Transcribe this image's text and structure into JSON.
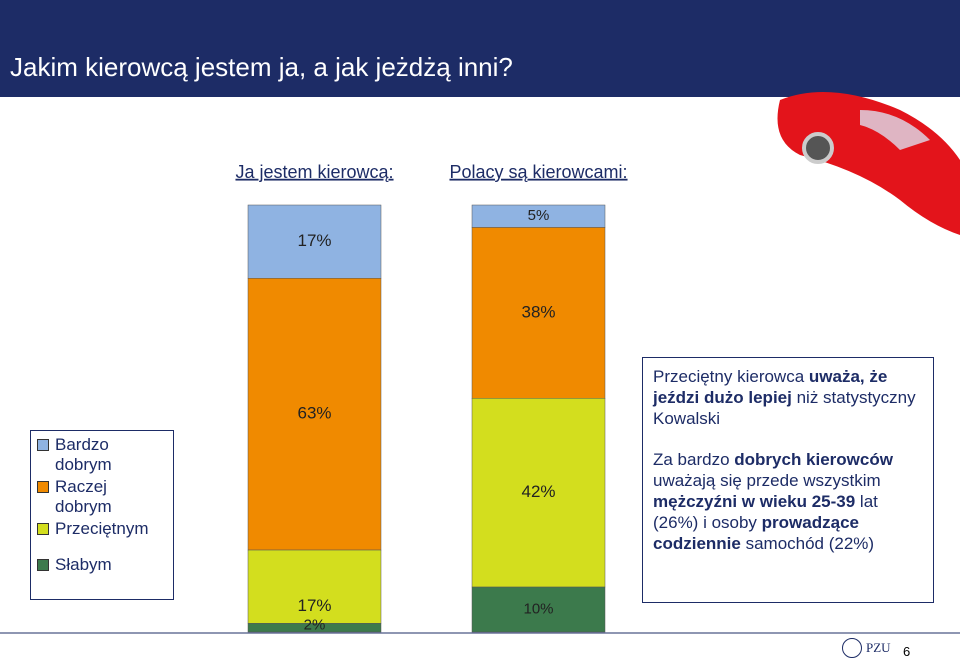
{
  "slide_title": "Jakim kierowcą jestem ja, a jak jeżdżą inni?",
  "chart_data": {
    "type": "stacked-bar-100",
    "categories": [
      "Ja jestem kierowcą:",
      "Polacy są kierowcami:"
    ],
    "series": [
      {
        "name": "Bardzo dobrym",
        "color": "#8fb3e2",
        "values": [
          17,
          5
        ],
        "value_labels": [
          "17%",
          "5%"
        ]
      },
      {
        "name": "Raczej dobrym",
        "color": "#f08a00",
        "values": [
          63,
          38
        ],
        "value_labels": [
          "63%",
          "38%"
        ]
      },
      {
        "name": "Przeciętnym",
        "color": "#d3de1e",
        "values": [
          17,
          42
        ],
        "value_labels": [
          "17%",
          "42%"
        ]
      },
      {
        "name": "Słabym",
        "color": "#3c7a4c",
        "values": [
          2,
          10
        ],
        "value_labels": [
          "2%",
          "10%"
        ]
      }
    ]
  },
  "note": {
    "paragraphs": [
      [
        {
          "text": "Przeciętny kierowca ",
          "bold": false
        },
        {
          "text": "uważa, że jeździ dużo lepiej",
          "bold": true
        },
        {
          "text": " niż statystyczny Kowalski",
          "bold": false
        }
      ],
      [
        {
          "text": "Za bardzo ",
          "bold": false
        },
        {
          "text": "dobrych kierowców",
          "bold": true
        },
        {
          "text": " uważają się przede wszystkim ",
          "bold": false
        },
        {
          "text": "mężczyźni w wieku 25-39",
          "bold": true
        },
        {
          "text": " lat (26%) i osoby ",
          "bold": false
        },
        {
          "text": "prowadzące codziennie",
          "bold": true
        },
        {
          "text": " samochód (22%)",
          "bold": false
        }
      ]
    ]
  },
  "footer": {
    "logo": "PZU",
    "page": "6"
  }
}
